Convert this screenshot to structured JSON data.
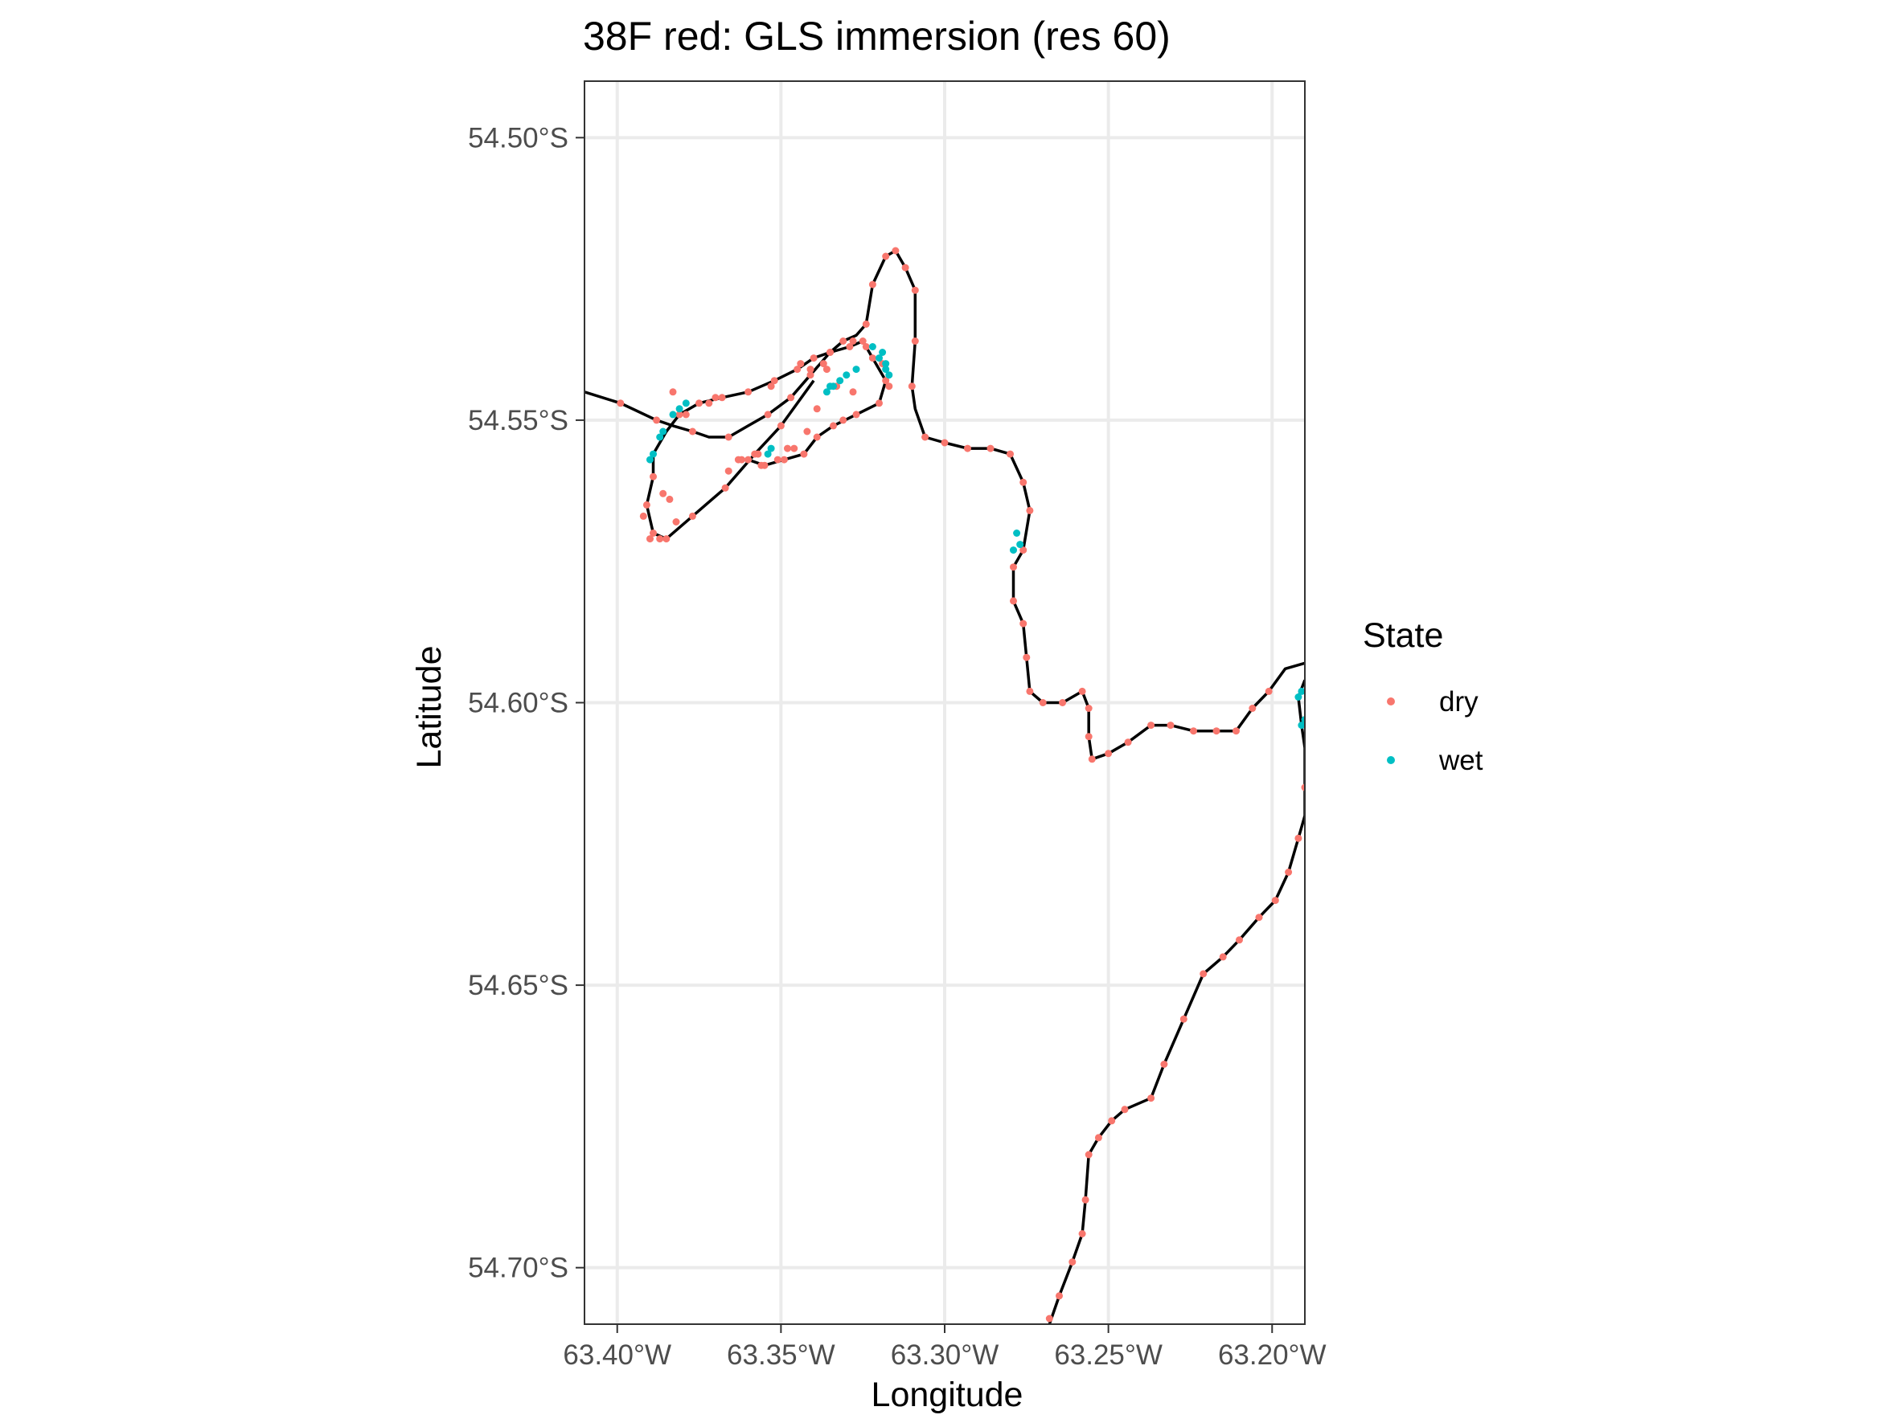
{
  "chart_data": {
    "type": "scatter",
    "title": "38F red: GLS immersion (res 60)",
    "xlabel": "Longitude",
    "ylabel": "Latitude",
    "xlim": [
      -63.41,
      -63.19
    ],
    "ylim": [
      -54.71,
      -54.49
    ],
    "x_ticks": [
      -63.4,
      -63.35,
      -63.3,
      -63.25,
      -63.2
    ],
    "x_tick_labels": [
      "63.40°W",
      "63.35°W",
      "63.30°W",
      "63.25°W",
      "63.20°W"
    ],
    "y_ticks": [
      -54.5,
      -54.55,
      -54.6,
      -54.65,
      -54.7
    ],
    "y_tick_labels": [
      "54.50°S",
      "54.55°S",
      "54.60°S",
      "54.65°S",
      "54.70°S"
    ],
    "grid": true,
    "legend": {
      "title": "State",
      "position": "right"
    },
    "colors": {
      "dry": "#F8766D",
      "wet": "#00BFC4",
      "path": "#000000"
    },
    "path": [
      [
        -63.41,
        -54.545
      ],
      [
        -63.399,
        -54.547
      ],
      [
        -63.388,
        -54.55
      ],
      [
        -63.383,
        -54.551
      ],
      [
        -63.377,
        -54.552
      ],
      [
        -63.372,
        -54.553
      ],
      [
        -63.366,
        -54.553
      ],
      [
        -63.36,
        -54.551
      ],
      [
        -63.354,
        -54.549
      ],
      [
        -63.347,
        -54.546
      ],
      [
        -63.341,
        -54.542
      ],
      [
        -63.335,
        -54.538
      ],
      [
        -63.331,
        -54.536
      ],
      [
        -63.327,
        -54.535
      ],
      [
        -63.324,
        -54.533
      ],
      [
        -63.322,
        -54.526
      ],
      [
        -63.318,
        -54.521
      ],
      [
        -63.315,
        -54.52
      ],
      [
        -63.312,
        -54.523
      ],
      [
        -63.309,
        -54.527
      ],
      [
        -63.309,
        -54.536
      ],
      [
        -63.31,
        -54.544
      ],
      [
        -63.309,
        -54.548
      ],
      [
        -63.306,
        -54.553
      ],
      [
        -63.3,
        -54.554
      ],
      [
        -63.293,
        -54.555
      ],
      [
        -63.286,
        -54.555
      ],
      [
        -63.28,
        -54.556
      ],
      [
        -63.276,
        -54.561
      ],
      [
        -63.274,
        -54.566
      ],
      [
        -63.276,
        -54.573
      ],
      [
        -63.279,
        -54.576
      ],
      [
        -63.279,
        -54.582
      ],
      [
        -63.276,
        -54.586
      ],
      [
        -63.275,
        -54.592
      ],
      [
        -63.274,
        -54.598
      ],
      [
        -63.27,
        -54.6
      ],
      [
        -63.264,
        -54.6
      ],
      [
        -63.258,
        -54.598
      ],
      [
        -63.256,
        -54.601
      ],
      [
        -63.256,
        -54.606
      ],
      [
        -63.255,
        -54.61
      ],
      [
        -63.25,
        -54.609
      ],
      [
        -63.244,
        -54.607
      ],
      [
        -63.237,
        -54.604
      ],
      [
        -63.231,
        -54.604
      ],
      [
        -63.224,
        -54.605
      ],
      [
        -63.217,
        -54.605
      ],
      [
        -63.211,
        -54.605
      ],
      [
        -63.206,
        -54.601
      ],
      [
        -63.201,
        -54.598
      ],
      [
        -63.196,
        -54.594
      ],
      [
        -63.19,
        -54.593
      ]
    ],
    "return_path": [
      [
        -63.19,
        -54.596
      ],
      [
        -63.192,
        -54.599
      ],
      [
        -63.191,
        -54.604
      ],
      [
        -63.19,
        -54.608
      ],
      [
        -63.19,
        -54.62
      ],
      [
        -63.192,
        -54.624
      ],
      [
        -63.195,
        -54.63
      ],
      [
        -63.199,
        -54.635
      ],
      [
        -63.204,
        -54.638
      ],
      [
        -63.21,
        -54.642
      ],
      [
        -63.215,
        -54.645
      ],
      [
        -63.221,
        -54.648
      ],
      [
        -63.227,
        -54.656
      ],
      [
        -63.233,
        -54.664
      ],
      [
        -63.237,
        -54.67
      ],
      [
        -63.245,
        -54.672
      ],
      [
        -63.249,
        -54.674
      ],
      [
        -63.253,
        -54.677
      ],
      [
        -63.256,
        -54.68
      ],
      [
        -63.257,
        -54.688
      ],
      [
        -63.258,
        -54.694
      ],
      [
        -63.261,
        -54.699
      ],
      [
        -63.265,
        -54.705
      ],
      [
        -63.268,
        -54.71
      ]
    ],
    "loop_path": [
      [
        -63.34,
        -54.543
      ],
      [
        -63.35,
        -54.551
      ],
      [
        -63.358,
        -54.556
      ],
      [
        -63.367,
        -54.562
      ],
      [
        -63.377,
        -54.567
      ],
      [
        -63.385,
        -54.571
      ],
      [
        -63.389,
        -54.57
      ],
      [
        -63.391,
        -54.565
      ],
      [
        -63.389,
        -54.56
      ],
      [
        -63.389,
        -54.556
      ],
      [
        -63.385,
        -54.552
      ],
      [
        -63.381,
        -54.549
      ],
      [
        -63.375,
        -54.547
      ],
      [
        -63.368,
        -54.546
      ],
      [
        -63.36,
        -54.545
      ],
      [
        -63.352,
        -54.543
      ],
      [
        -63.345,
        -54.541
      ],
      [
        -63.34,
        -54.539
      ],
      [
        -63.335,
        -54.538
      ],
      [
        -63.329,
        -54.537
      ],
      [
        -63.325,
        -54.536
      ],
      [
        -63.322,
        -54.539
      ],
      [
        -63.318,
        -54.543
      ],
      [
        -63.32,
        -54.547
      ],
      [
        -63.327,
        -54.549
      ],
      [
        -63.334,
        -54.551
      ],
      [
        -63.339,
        -54.553
      ],
      [
        -63.343,
        -54.556
      ],
      [
        -63.349,
        -54.557
      ],
      [
        -63.355,
        -54.558
      ],
      [
        -63.36,
        -54.557
      ]
    ],
    "series": [
      {
        "name": "dry",
        "x": [
          -63.399,
          -63.388,
          -63.377,
          -63.366,
          -63.354,
          -63.341,
          -63.331,
          -63.324,
          -63.318,
          -63.315,
          -63.312,
          -63.309,
          -63.31,
          -63.306,
          -63.3,
          -63.293,
          -63.286,
          -63.28,
          -63.276,
          -63.274,
          -63.276,
          -63.279,
          -63.276,
          -63.274,
          -63.27,
          -63.264,
          -63.258,
          -63.256,
          -63.255,
          -63.25,
          -63.244,
          -63.237,
          -63.231,
          -63.224,
          -63.217,
          -63.211,
          -63.206,
          -63.201,
          -63.19,
          -63.192,
          -63.195,
          -63.199,
          -63.204,
          -63.21,
          -63.215,
          -63.221,
          -63.227,
          -63.233,
          -63.237,
          -63.245,
          -63.249,
          -63.253,
          -63.256,
          -63.257,
          -63.258,
          -63.261,
          -63.265,
          -63.268,
          -63.35,
          -63.358,
          -63.367,
          -63.377,
          -63.385,
          -63.389,
          -63.391,
          -63.389,
          -63.381,
          -63.375,
          -63.368,
          -63.36,
          -63.352,
          -63.345,
          -63.34,
          -63.335,
          -63.329,
          -63.325,
          -63.322,
          -63.318,
          -63.32,
          -63.327,
          -63.334,
          -63.339,
          -63.343,
          -63.349,
          -63.355,
          -63.36,
          -63.372,
          -63.383,
          -63.347,
          -63.335,
          -63.322,
          -63.309,
          -63.279,
          -63.275,
          -63.256,
          -63.387,
          -63.362,
          -63.356,
          -63.331,
          -63.328,
          -63.333,
          -63.337,
          -63.344,
          -63.353,
          -63.37,
          -63.379,
          -63.386,
          -63.319,
          -63.317,
          -63.324,
          -63.328,
          -63.336,
          -63.339,
          -63.342,
          -63.346,
          -63.351,
          -63.357,
          -63.363,
          -63.382,
          -63.39,
          -63.392,
          -63.384,
          -63.366,
          -63.348,
          -63.341
        ],
        "y": [
          -54.547,
          -54.55,
          -54.552,
          -54.553,
          -54.549,
          -54.542,
          -54.536,
          -54.533,
          -54.521,
          -54.52,
          -54.523,
          -54.527,
          -54.544,
          -54.553,
          -54.554,
          -54.555,
          -54.555,
          -54.556,
          -54.561,
          -54.566,
          -54.573,
          -54.582,
          -54.586,
          -54.598,
          -54.6,
          -54.6,
          -54.598,
          -54.606,
          -54.61,
          -54.609,
          -54.607,
          -54.604,
          -54.604,
          -54.605,
          -54.605,
          -54.605,
          -54.601,
          -54.598,
          -54.615,
          -54.624,
          -54.63,
          -54.635,
          -54.638,
          -54.642,
          -54.645,
          -54.648,
          -54.656,
          -54.664,
          -54.67,
          -54.672,
          -54.674,
          -54.677,
          -54.68,
          -54.688,
          -54.694,
          -54.699,
          -54.705,
          -54.709,
          -54.551,
          -54.556,
          -54.562,
          -54.567,
          -54.571,
          -54.57,
          -54.565,
          -54.56,
          -54.549,
          -54.547,
          -54.546,
          -54.545,
          -54.543,
          -54.541,
          -54.539,
          -54.538,
          -54.537,
          -54.536,
          -54.539,
          -54.543,
          -54.547,
          -54.549,
          -54.551,
          -54.553,
          -54.556,
          -54.557,
          -54.558,
          -54.557,
          -54.547,
          -54.545,
          -54.546,
          -54.538,
          -54.526,
          -54.536,
          -54.576,
          -54.592,
          -54.601,
          -54.571,
          -54.557,
          -54.558,
          -54.55,
          -54.545,
          -54.544,
          -54.54,
          -54.54,
          -54.544,
          -54.546,
          -54.549,
          -54.563,
          -54.54,
          -54.544,
          -54.537,
          -54.536,
          -54.541,
          -54.548,
          -54.552,
          -54.555,
          -54.557,
          -54.556,
          -54.557,
          -54.568,
          -54.571,
          -54.567,
          -54.564,
          -54.559,
          -54.555,
          -54.541
        ]
      },
      {
        "name": "wet",
        "x": [
          -63.383,
          -63.381,
          -63.379,
          -63.386,
          -63.387,
          -63.389,
          -63.39,
          -63.334,
          -63.332,
          -63.33,
          -63.327,
          -63.32,
          -63.318,
          -63.317,
          -63.319,
          -63.322,
          -63.278,
          -63.277,
          -63.279,
          -63.191,
          -63.192,
          -63.19,
          -63.191,
          -63.354,
          -63.353,
          -63.335,
          -63.336,
          -63.318
        ],
        "y": [
          -54.549,
          -54.548,
          -54.547,
          -54.552,
          -54.553,
          -54.556,
          -54.557,
          -54.544,
          -54.543,
          -54.542,
          -54.541,
          -54.539,
          -54.541,
          -54.542,
          -54.538,
          -54.537,
          -54.57,
          -54.572,
          -54.573,
          -54.598,
          -54.599,
          -54.603,
          -54.604,
          -54.556,
          -54.555,
          -54.544,
          -54.545,
          -54.54
        ]
      }
    ]
  }
}
